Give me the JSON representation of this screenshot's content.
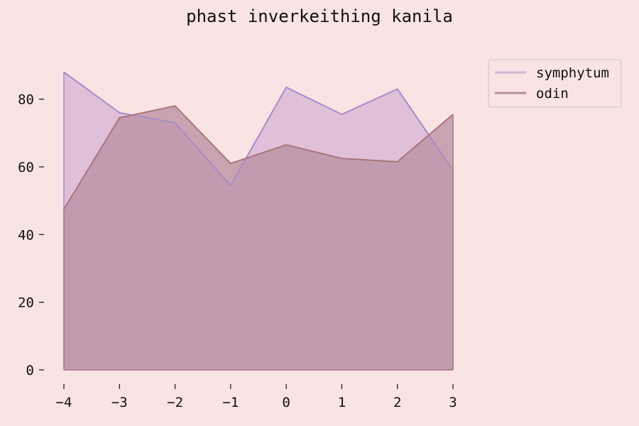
{
  "chart_data": {
    "type": "area",
    "title": "phast inverkeithing kanila",
    "xlabel": "",
    "ylabel": "",
    "x": [
      -4,
      -3,
      -2,
      -1,
      0,
      1,
      2,
      3
    ],
    "xlim": [
      -4,
      3
    ],
    "ylim": [
      0,
      90
    ],
    "x_ticks": [
      -4,
      -3,
      -2,
      -1,
      0,
      1,
      2,
      3
    ],
    "x_tick_labels": [
      "−4",
      "−3",
      "−2",
      "−1",
      "0",
      "1",
      "2",
      "3"
    ],
    "y_ticks": [
      0,
      20,
      40,
      60,
      80
    ],
    "y_tick_labels": [
      "0",
      "20",
      "40",
      "60",
      "80"
    ],
    "grid": false,
    "legend_position": "top-right outside",
    "series": [
      {
        "name": "symphytum",
        "values": [
          88,
          76,
          73,
          54.5,
          83.5,
          75.5,
          83,
          59
        ],
        "line_color": "#a98bc8",
        "fill_color": "#d7b4d6"
      },
      {
        "name": "odin",
        "values": [
          47.5,
          74.5,
          78,
          61,
          66.5,
          62.5,
          61.5,
          75.5
        ],
        "line_color": "#a9767d",
        "fill_color": "#b88f9f"
      }
    ]
  }
}
